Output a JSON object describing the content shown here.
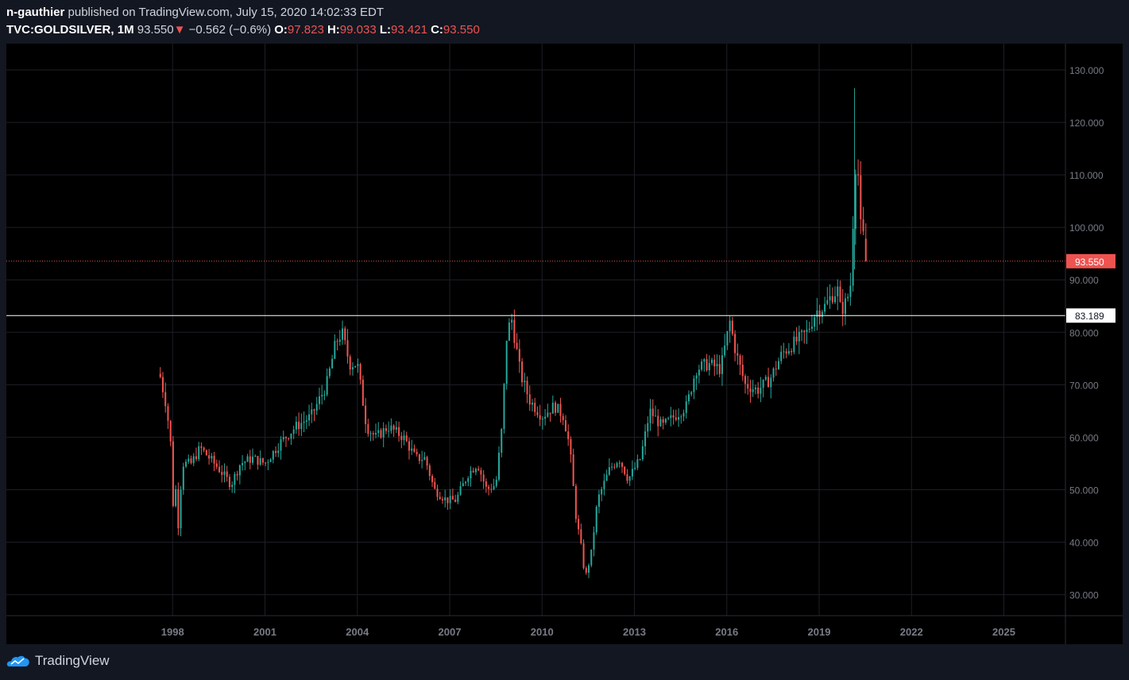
{
  "header": {
    "author": "n-gauthier",
    "published_text": " published on TradingView.com, July 15, 2020 14:02:33 EDT",
    "symbol": "TVC:GOLDSILVER, 1M",
    "last": "93.550",
    "change_arrow": "▼",
    "change": "−0.562 (−0.6%)",
    "open_label": "O:",
    "open": "97.823",
    "high_label": "H:",
    "high": "99.033",
    "low_label": "L:",
    "low": "93.421",
    "close_label": "C:",
    "close": "93.550"
  },
  "footer": {
    "brand": "TradingView"
  },
  "colors": {
    "background": "#000000",
    "page": "#131722",
    "up": "#26a69a",
    "down": "#ef5350",
    "grid": "#1c1f26",
    "axis_text": "#787b86"
  },
  "chart_data": {
    "type": "candlestick",
    "title": "TVC:GOLDSILVER, 1M",
    "x_ticks": [
      "1998",
      "2001",
      "2004",
      "2007",
      "2010",
      "2013",
      "2016",
      "2019",
      "2022",
      "2025"
    ],
    "x_tick_years": [
      1998,
      2001,
      2004,
      2007,
      2010,
      2013,
      2016,
      2019,
      2022,
      2025
    ],
    "y_ticks": [
      "130.000",
      "120.000",
      "110.000",
      "100.000",
      "90.000",
      "80.000",
      "70.000",
      "60.000",
      "50.000",
      "40.000",
      "30.000"
    ],
    "ylim": [
      26,
      135
    ],
    "xlim_years": [
      1992.6,
      2027.0
    ],
    "grid": true,
    "current_price": {
      "value": 93.55,
      "label": "93.550"
    },
    "horizontal_level": {
      "value": 83.189,
      "label": "83.189"
    },
    "anchors": [
      [
        1997.6,
        71.5
      ],
      [
        1997.8,
        66
      ],
      [
        1997.95,
        58
      ],
      [
        1998.0,
        48
      ],
      [
        1998.05,
        46
      ],
      [
        1998.1,
        50
      ],
      [
        1998.2,
        42
      ],
      [
        1998.3,
        55
      ],
      [
        1998.6,
        55
      ],
      [
        1998.9,
        58
      ],
      [
        1999.2,
        56
      ],
      [
        1999.5,
        54
      ],
      [
        1999.9,
        51
      ],
      [
        2000.2,
        55
      ],
      [
        2000.6,
        56
      ],
      [
        2001.0,
        55
      ],
      [
        2001.5,
        59
      ],
      [
        2002.0,
        62
      ],
      [
        2002.5,
        64
      ],
      [
        2003.0,
        70
      ],
      [
        2003.3,
        78
      ],
      [
        2003.5,
        80
      ],
      [
        2003.75,
        74
      ],
      [
        2004.0,
        74
      ],
      [
        2004.3,
        62
      ],
      [
        2004.6,
        60
      ],
      [
        2005.0,
        62
      ],
      [
        2005.5,
        60
      ],
      [
        2005.9,
        56
      ],
      [
        2006.2,
        56
      ],
      [
        2006.5,
        50
      ],
      [
        2006.9,
        48
      ],
      [
        2007.2,
        48
      ],
      [
        2007.6,
        53
      ],
      [
        2007.9,
        55
      ],
      [
        2008.2,
        50
      ],
      [
        2008.5,
        51
      ],
      [
        2008.7,
        62
      ],
      [
        2008.85,
        79
      ],
      [
        2009.0,
        83
      ],
      [
        2009.3,
        72
      ],
      [
        2009.6,
        67
      ],
      [
        2010.0,
        64
      ],
      [
        2010.4,
        66
      ],
      [
        2010.7,
        64
      ],
      [
        2010.9,
        58
      ],
      [
        2011.1,
        45
      ],
      [
        2011.3,
        38
      ],
      [
        2011.4,
        33
      ],
      [
        2011.6,
        38
      ],
      [
        2011.8,
        48
      ],
      [
        2012.2,
        54
      ],
      [
        2012.5,
        56
      ],
      [
        2012.8,
        52
      ],
      [
        2013.2,
        56
      ],
      [
        2013.5,
        65
      ],
      [
        2013.9,
        62
      ],
      [
        2014.3,
        64
      ],
      [
        2014.7,
        66
      ],
      [
        2015.0,
        73
      ],
      [
        2015.4,
        74
      ],
      [
        2015.8,
        73
      ],
      [
        2016.1,
        82
      ],
      [
        2016.3,
        76
      ],
      [
        2016.6,
        70
      ],
      [
        2017.0,
        69
      ],
      [
        2017.4,
        71
      ],
      [
        2017.8,
        76
      ],
      [
        2018.2,
        78
      ],
      [
        2018.6,
        80
      ],
      [
        2018.9,
        84
      ],
      [
        2019.2,
        85
      ],
      [
        2019.4,
        87
      ],
      [
        2019.6,
        88
      ],
      [
        2019.7,
        84
      ],
      [
        2019.9,
        86
      ],
      [
        2020.05,
        90
      ],
      [
        2020.15,
        112
      ],
      [
        2020.25,
        112
      ],
      [
        2020.35,
        100
      ],
      [
        2020.45,
        97.8
      ],
      [
        2020.54,
        93.55
      ]
    ]
  }
}
